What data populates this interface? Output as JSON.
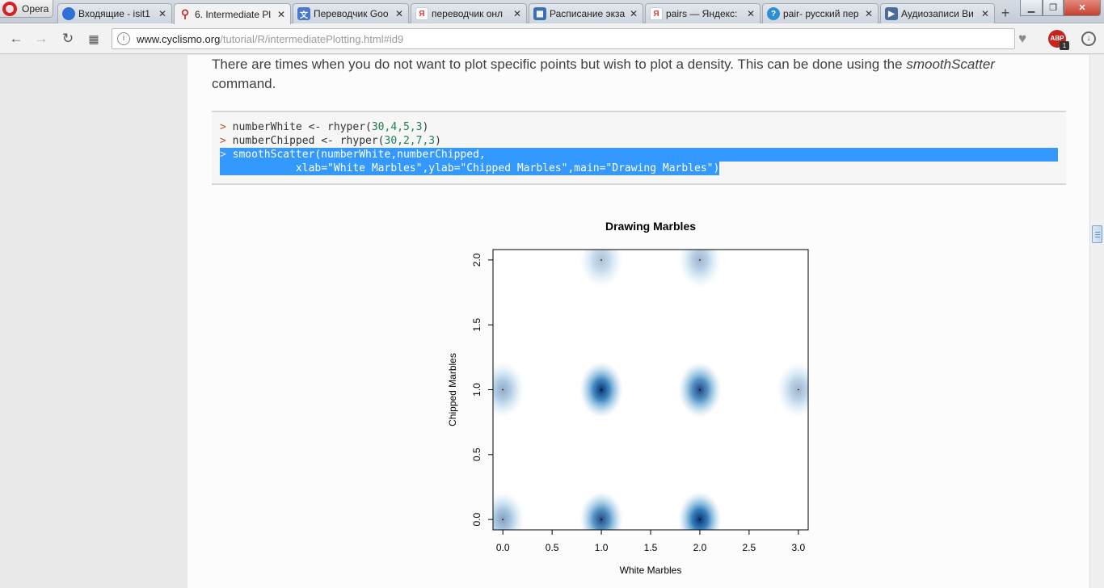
{
  "browser": {
    "menu_label": "Opera",
    "tabs": [
      {
        "label": "Входящие - isit1",
        "active": false,
        "icon": "mail-icon",
        "color": "#2f6fd6"
      },
      {
        "label": "6. Intermediate Pl",
        "active": true,
        "icon": "pin-icon",
        "color": "#c5312e"
      },
      {
        "label": "Переводчик Goo",
        "active": false,
        "icon": "translate-icon",
        "color": "#4a79c9"
      },
      {
        "label": "переводчик онл",
        "active": false,
        "icon": "yandex-icon",
        "color": "#e23b2e"
      },
      {
        "label": "Расписание экза",
        "active": false,
        "icon": "schedule-icon",
        "color": "#3a6fb0"
      },
      {
        "label": "pairs — Яндекс:",
        "active": false,
        "icon": "yandex-icon",
        "color": "#e23b2e"
      },
      {
        "label": "pair- русский пер",
        "active": false,
        "icon": "dictionary-icon",
        "color": "#2d8ed6"
      },
      {
        "label": "Аудиозаписи Ви",
        "active": false,
        "icon": "play-icon",
        "color": "#4a6c9b"
      }
    ],
    "new_tab": "+",
    "url_domain": "www.cyclismo.org",
    "url_path": "/tutorial/R/intermediatePlotting.html#id9"
  },
  "page": {
    "intro_text_1": "There are times when you do not want to plot specific points but wish to plot a density. This can be done using the ",
    "intro_emph": "smoothScatter",
    "intro_text_2": "command.",
    "code": {
      "prompt": ">",
      "line1_pre": "numberWhite <- rhyper(",
      "line1_args": "30,4,5,3",
      "line1_post": ")",
      "line2_pre": "numberChipped <- rhyper(",
      "line2_args": "30,2,7,3",
      "line2_post": ")",
      "line3": "smoothScatter(numberWhite,numberChipped,",
      "line4": "            xlab=\"White Marbles\",ylab=\"Chipped Marbles\",main=\"Drawing Marbles\")"
    }
  },
  "chart_data": {
    "type": "heatmap",
    "title": "Drawing Marbles",
    "xlabel": "White Marbles",
    "ylabel": "Chipped Marbles",
    "xlim": [
      -0.1,
      3.1
    ],
    "ylim": [
      -0.08,
      2.08
    ],
    "xticks": [
      "0.0",
      "0.5",
      "1.0",
      "1.5",
      "2.0",
      "2.5",
      "3.0"
    ],
    "yticks": [
      "0.0",
      "0.5",
      "1.0",
      "1.5",
      "2.0"
    ],
    "density_points": [
      {
        "x": 0,
        "y": 0,
        "intensity": 0.45
      },
      {
        "x": 1,
        "y": 0,
        "intensity": 0.85
      },
      {
        "x": 2,
        "y": 0,
        "intensity": 1.0
      },
      {
        "x": 0,
        "y": 1,
        "intensity": 0.4
      },
      {
        "x": 1,
        "y": 1,
        "intensity": 0.95
      },
      {
        "x": 2,
        "y": 1,
        "intensity": 0.85
      },
      {
        "x": 3,
        "y": 1,
        "intensity": 0.35
      },
      {
        "x": 1,
        "y": 2,
        "intensity": 0.3
      },
      {
        "x": 2,
        "y": 2,
        "intensity": 0.35
      }
    ],
    "colors": {
      "low": "#ffffff",
      "mid": "#6aaed6",
      "high": "#08306b"
    }
  }
}
